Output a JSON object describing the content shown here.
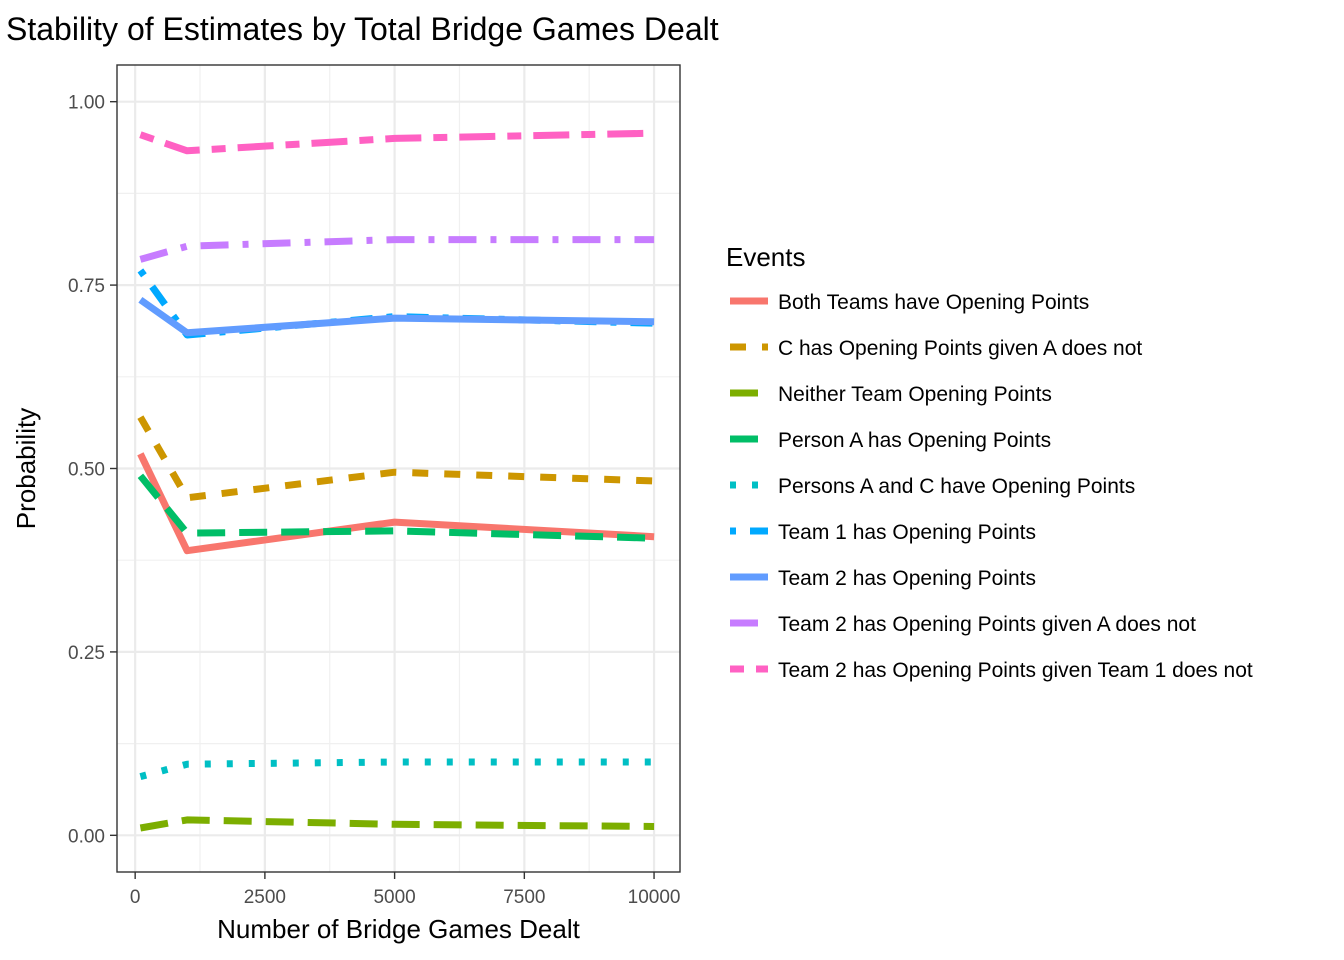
{
  "chart_data": {
    "type": "line",
    "title": "Stability of Estimates by Total Bridge Games Dealt",
    "xlabel": "Number of Bridge Games Dealt",
    "ylabel": "Probability",
    "xlim": [
      -350,
      10500
    ],
    "ylim": [
      -0.05,
      1.05
    ],
    "x_ticks": [
      0,
      2500,
      5000,
      7500,
      10000
    ],
    "x_tick_labels": [
      "0",
      "2500",
      "5000",
      "7500",
      "10000"
    ],
    "y_ticks": [
      0.0,
      0.25,
      0.5,
      0.75,
      1.0
    ],
    "y_tick_labels": [
      "0.00",
      "0.25",
      "0.50",
      "0.75",
      "1.00"
    ],
    "grid": true,
    "legend_title": "Events",
    "legend_position": "right",
    "x": [
      100,
      1000,
      5000,
      10000
    ],
    "series": [
      {
        "name": "Both Teams have Opening Points",
        "color": "#F8766D",
        "linetype": "solid",
        "values": [
          0.52,
          0.388,
          0.427,
          0.407
        ]
      },
      {
        "name": "C has Opening Points given A does not",
        "color": "#CD9600",
        "linetype": "dashed",
        "values": [
          0.57,
          0.46,
          0.495,
          0.483
        ]
      },
      {
        "name": "Neither Team Opening Points",
        "color": "#7CAE00",
        "linetype": "longdash",
        "values": [
          0.01,
          0.021,
          0.015,
          0.012
        ]
      },
      {
        "name": "Person A has Opening Points",
        "color": "#00BE67",
        "linetype": "longdash",
        "values": [
          0.49,
          0.412,
          0.415,
          0.405
        ]
      },
      {
        "name": "Persons A and C have Opening Points",
        "color": "#00BFC4",
        "linetype": "dotted",
        "values": [
          0.08,
          0.097,
          0.1,
          0.1
        ]
      },
      {
        "name": "Team 1 has Opening Points",
        "color": "#00A9FF",
        "linetype": "dotdash",
        "values": [
          0.77,
          0.682,
          0.707,
          0.698
        ]
      },
      {
        "name": "Team 2 has Opening Points",
        "color": "#619CFF",
        "linetype": "solid",
        "values": [
          0.73,
          0.685,
          0.705,
          0.7
        ]
      },
      {
        "name": "Team 2 has Opening Points given A does not",
        "color": "#C77CFF",
        "linetype": "longdash_dot",
        "values": [
          0.785,
          0.803,
          0.812,
          0.812
        ]
      },
      {
        "name": "Team 2 has Opening Points given Team 1 does not",
        "color": "#FF61C3",
        "linetype": "twodash",
        "values": [
          0.955,
          0.933,
          0.95,
          0.957
        ]
      }
    ]
  }
}
